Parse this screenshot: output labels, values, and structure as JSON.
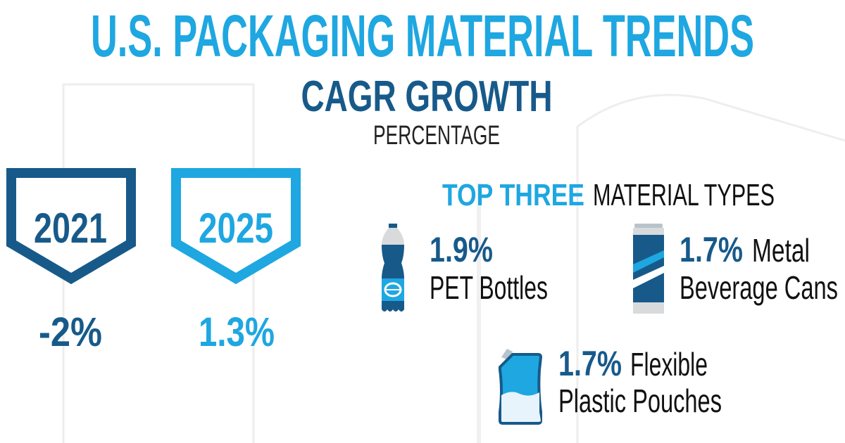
{
  "header": {
    "title": "U.S. PACKAGING MATERIAL TRENDS",
    "subtitle": "CAGR GROWTH",
    "unit": "PERCENTAGE"
  },
  "years": [
    {
      "year": "2021",
      "value": "-2%",
      "color": "#175a8a"
    },
    {
      "year": "2025",
      "value": "1.3%",
      "color": "#1ea7e1"
    }
  ],
  "top_three": {
    "heading_highlight": "TOP THREE",
    "heading_rest": "MATERIAL TYPES",
    "items": [
      {
        "value": "1.9%",
        "label_line1": "",
        "label_line2": "PET Bottles",
        "icon": "bottle-icon"
      },
      {
        "value": "1.7%",
        "label_line1": "Metal",
        "label_line2": "Beverage Cans",
        "icon": "can-icon"
      },
      {
        "value": "1.7%",
        "label_line1": "Flexible",
        "label_line2": "Plastic Pouches",
        "icon": "pouch-icon"
      }
    ]
  }
}
